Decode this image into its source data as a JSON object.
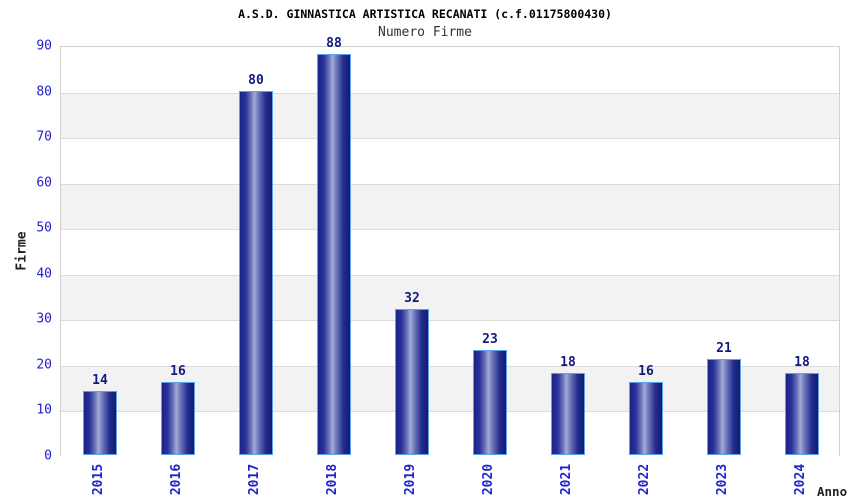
{
  "title": "A.S.D. GINNASTICA ARTISTICA RECANATI (c.f.01175800430)",
  "subtitle": "Numero Firme",
  "chart_data": {
    "type": "bar",
    "title": "Numero Firme",
    "categories": [
      "2015",
      "2016",
      "2017",
      "2018",
      "2019",
      "2020",
      "2021",
      "2022",
      "2023",
      "2024"
    ],
    "values": [
      14,
      16,
      80,
      88,
      32,
      23,
      18,
      16,
      21,
      18
    ],
    "xlabel": "Anno",
    "ylabel": "Firme",
    "ylim": [
      0,
      90
    ],
    "ytick_step": 10,
    "yticks": [
      0,
      10,
      20,
      30,
      40,
      50,
      60,
      70,
      80,
      90
    ],
    "value_labels_shown": true,
    "legend": "none",
    "grid": "alternating-horizontal-bands",
    "colors": {
      "bar_dark": "#1c2286",
      "bar_highlight": "#a2aad8",
      "bar_border": "#5aa2ee",
      "tick_label_blue": "#2222cc",
      "value_label_navy": "#111a7e",
      "band_gray": "#f2f2f2",
      "band_white": "#ffffff",
      "gridline": "#dcdcdc",
      "plot_border": "#d0d0d0",
      "title_color": "#000000",
      "subtitle_color": "#333333"
    }
  }
}
